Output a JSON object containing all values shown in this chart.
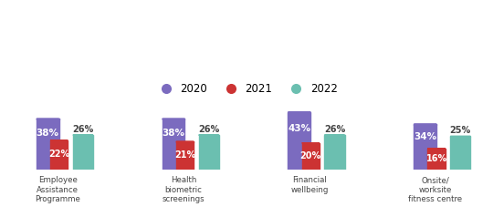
{
  "categories": [
    "Employee\nAssistance\nProgramme",
    "Health\nbiometric\nscreenings",
    "Financial\nwellbeing",
    "Onsite/\nworksite\nfitness centre"
  ],
  "series": {
    "2020": {
      "values": [
        38,
        38,
        43,
        34
      ],
      "color": "#7B6BBF"
    },
    "2021": {
      "values": [
        22,
        21,
        20,
        16
      ],
      "color": "#CC3333"
    },
    "2022": {
      "values": [
        26,
        26,
        26,
        25
      ],
      "color": "#6BBFB0"
    }
  },
  "year_order": [
    "2020",
    "2021",
    "2022"
  ],
  "legend_colors": {
    "2020": "#7B6BBF",
    "2021": "#CC3333",
    "2022": "#6BBFB0"
  },
  "text_color_inside": "#ffffff",
  "text_color_outside": "#444444",
  "background_color": "#ffffff",
  "ylim": [
    0,
    52
  ],
  "figsize": [
    5.4,
    2.38
  ],
  "dpi": 100
}
